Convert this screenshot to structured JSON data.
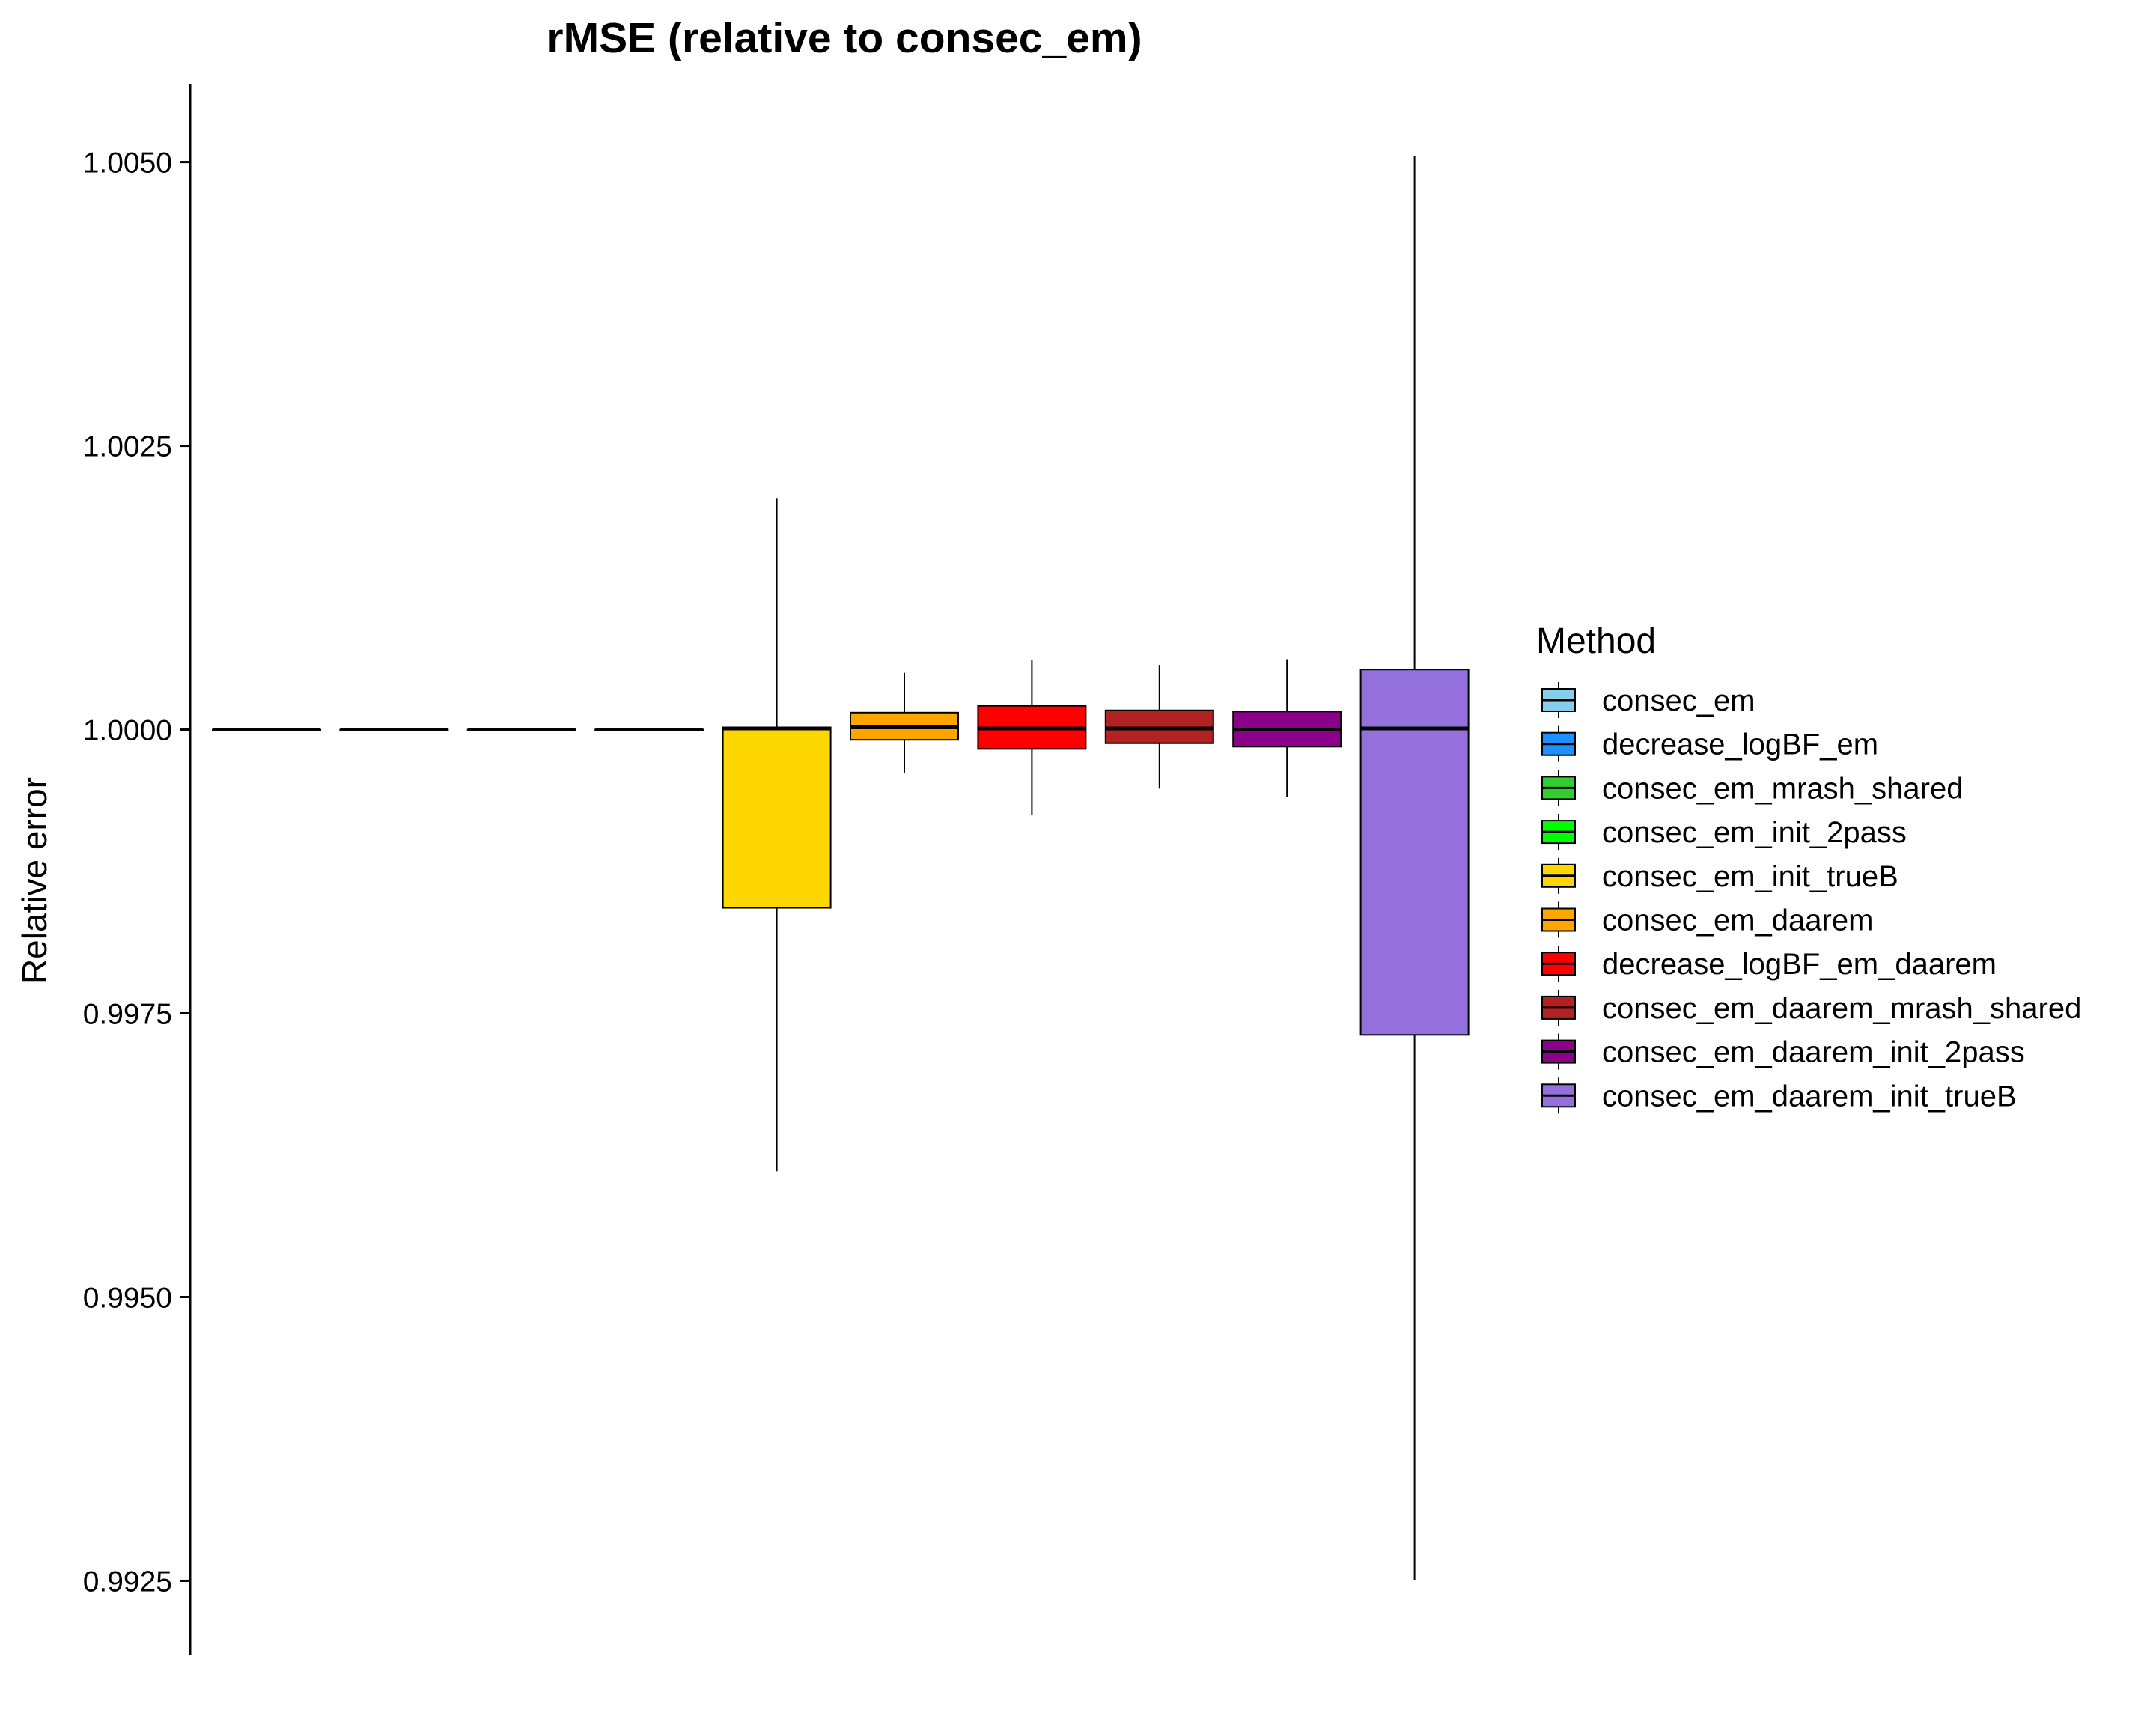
{
  "chart_data": {
    "type": "boxplot",
    "title": "rMSE (relative to consec_em)",
    "xlabel": "",
    "ylabel": "Relative error",
    "ylim": [
      0.99185,
      1.00569
    ],
    "yticks": [
      "0.9925",
      "0.9950",
      "0.9975",
      "1.0000",
      "1.0025",
      "1.0050"
    ],
    "grid": false,
    "legend": {
      "title": "Method",
      "position": "right"
    },
    "series": [
      {
        "name": "consec_em",
        "color": "#87CEEB",
        "min": 1.0,
        "q1": 1.0,
        "median": 1.0,
        "q3": 1.0,
        "max": 1.0
      },
      {
        "name": "decrease_logBF_em",
        "color": "#1E90FF",
        "min": 1.0,
        "q1": 1.0,
        "median": 1.0,
        "q3": 1.0,
        "max": 1.0
      },
      {
        "name": "consec_em_mrash_shared",
        "color": "#32CD32",
        "min": 1.0,
        "q1": 1.0,
        "median": 1.0,
        "q3": 1.0,
        "max": 1.0
      },
      {
        "name": "consec_em_init_2pass",
        "color": "#00FF00",
        "min": 1.0,
        "q1": 1.0,
        "median": 1.0,
        "q3": 1.0,
        "max": 1.0
      },
      {
        "name": "consec_em_init_trueB",
        "color": "#FFD700",
        "min": 0.99611,
        "q1": 0.99843,
        "median": 1.00001,
        "q3": 1.00002,
        "max": 1.00204
      },
      {
        "name": "consec_em_daarem",
        "color": "#FFA500",
        "min": 0.99962,
        "q1": 0.99991,
        "median": 1.00002,
        "q3": 1.00015,
        "max": 1.0005
      },
      {
        "name": "decrease_logBF_em_daarem",
        "color": "#FF0000",
        "min": 0.99925,
        "q1": 0.99983,
        "median": 1.00001,
        "q3": 1.00021,
        "max": 1.00061
      },
      {
        "name": "consec_em_daarem_mrash_shared",
        "color": "#B22222",
        "min": 0.99948,
        "q1": 0.99988,
        "median": 1.00001,
        "q3": 1.00017,
        "max": 1.00057
      },
      {
        "name": "consec_em_daarem_init_2pass",
        "color": "#8B008B",
        "min": 0.99941,
        "q1": 0.99985,
        "median": 1.0,
        "q3": 1.00016,
        "max": 1.00062
      },
      {
        "name": "consec_em_daarem_init_trueB",
        "color": "#9370DB",
        "min": 0.99251,
        "q1": 0.99731,
        "median": 1.00001,
        "q3": 1.00053,
        "max": 1.00505
      }
    ]
  }
}
